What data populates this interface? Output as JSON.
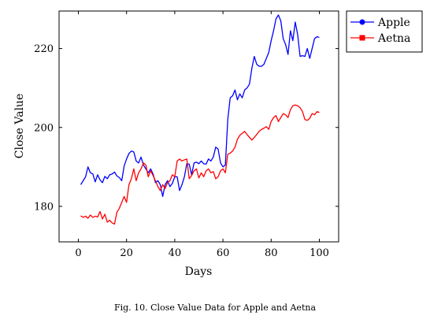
{
  "chart_data": {
    "type": "line",
    "title": "",
    "xlabel": "Days",
    "ylabel": "Close Value",
    "xlim": [
      -8,
      108
    ],
    "ylim": [
      171,
      229.5
    ],
    "xticks": [
      0,
      20,
      40,
      60,
      80,
      100
    ],
    "yticks": [
      180,
      200,
      220
    ],
    "grid": false,
    "legend_position": "outside-top-right",
    "series": [
      {
        "name": "Apple",
        "color": "#0000ff",
        "marker": "circle",
        "x": [
          1,
          2,
          3,
          4,
          5,
          6,
          7,
          8,
          9,
          10,
          11,
          12,
          13,
          14,
          15,
          16,
          17,
          18,
          19,
          20,
          21,
          22,
          23,
          24,
          25,
          26,
          27,
          28,
          29,
          30,
          31,
          32,
          33,
          34,
          35,
          36,
          37,
          38,
          39,
          40,
          41,
          42,
          43,
          44,
          45,
          46,
          47,
          48,
          49,
          50,
          51,
          52,
          53,
          54,
          55,
          56,
          57,
          58,
          59,
          60,
          61,
          62,
          63,
          64,
          65,
          66,
          67,
          68,
          69,
          70,
          71,
          72,
          73,
          74,
          75,
          76,
          77,
          78,
          79,
          80,
          81,
          82,
          83,
          84,
          85,
          86,
          87,
          88,
          89,
          90,
          91,
          92,
          93,
          94,
          95,
          96,
          97,
          98,
          99,
          100
        ],
        "y": [
          185.5,
          186.5,
          187.5,
          190,
          188.5,
          188.2,
          186.2,
          188,
          186.7,
          186,
          187.6,
          187,
          188,
          188.2,
          188.7,
          187.7,
          187.3,
          186.5,
          190.2,
          192,
          193.4,
          194,
          193.8,
          191.5,
          191,
          192.5,
          190.5,
          189.5,
          188.5,
          189.5,
          188.2,
          186,
          186.5,
          185.5,
          182.5,
          185.5,
          186.5,
          185,
          185.8,
          187.5,
          187.5,
          184,
          185.5,
          187.5,
          190.8,
          190.7,
          188,
          191,
          191.2,
          190.8,
          191.5,
          190.8,
          190.7,
          192,
          191.5,
          192.5,
          195,
          194.5,
          191,
          190,
          190.5,
          202,
          207.5,
          208,
          209.5,
          207,
          208.5,
          207.5,
          209.5,
          210,
          211,
          215,
          218,
          216,
          215.5,
          215.5,
          216,
          217.5,
          219,
          222,
          224.5,
          227.5,
          228.5,
          227,
          222.5,
          221,
          218.5,
          224.5,
          222,
          226.7,
          223.5,
          218,
          218.2,
          218,
          220,
          217.5,
          220,
          222.5,
          223,
          222.8
        ]
      },
      {
        "name": "Aetna",
        "color": "#ff0000",
        "marker": "square",
        "x": [
          1,
          2,
          3,
          4,
          5,
          6,
          7,
          8,
          9,
          10,
          11,
          12,
          13,
          14,
          15,
          16,
          17,
          18,
          19,
          20,
          21,
          22,
          23,
          24,
          25,
          26,
          27,
          28,
          29,
          30,
          31,
          32,
          33,
          34,
          35,
          36,
          37,
          38,
          39,
          40,
          41,
          42,
          43,
          44,
          45,
          46,
          47,
          48,
          49,
          50,
          51,
          52,
          53,
          54,
          55,
          56,
          57,
          58,
          59,
          60,
          61,
          62,
          63,
          64,
          65,
          66,
          67,
          68,
          69,
          70,
          71,
          72,
          73,
          74,
          75,
          76,
          77,
          78,
          79,
          80,
          81,
          82,
          83,
          84,
          85,
          86,
          87,
          88,
          89,
          90,
          91,
          92,
          93,
          94,
          95,
          96,
          97,
          98,
          99,
          100
        ],
        "y": [
          177.6,
          177.2,
          177.5,
          177,
          177.8,
          177.2,
          177.5,
          177.3,
          178.7,
          176.8,
          178,
          176,
          176.5,
          175.8,
          175.5,
          178.5,
          179.5,
          181,
          182.5,
          181,
          185.5,
          187,
          189.5,
          186.5,
          188.5,
          189.5,
          191,
          190.5,
          187.5,
          189,
          187.8,
          186.5,
          185,
          184,
          185.5,
          184.5,
          186,
          186.5,
          188,
          187.5,
          191.5,
          192,
          191.5,
          191.8,
          192,
          187,
          187.8,
          189,
          189.5,
          187.2,
          188.5,
          187.5,
          189,
          189.5,
          188.5,
          188.8,
          187,
          187.5,
          189,
          189.5,
          188.5,
          193.2,
          193.5,
          194,
          195,
          197,
          198,
          198.5,
          199,
          198.2,
          197.5,
          196.8,
          197.5,
          198.2,
          199,
          199.5,
          199.8,
          200.2,
          199.5,
          201.5,
          202.5,
          203,
          201.5,
          202.5,
          203.5,
          203.2,
          202.5,
          204.5,
          205.5,
          205.7,
          205.5,
          205,
          204,
          202,
          201.8,
          202.3,
          203.5,
          203.2,
          204,
          203.8
        ]
      }
    ]
  },
  "caption": "Fig. 10.  Close Value Data for Apple and Aetna"
}
